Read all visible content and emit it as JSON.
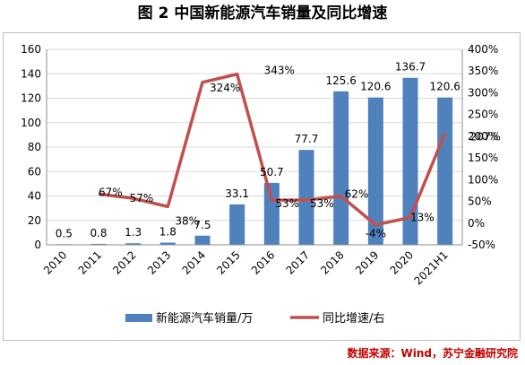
{
  "title": "图 2  中国新能源汽车销量及同比增速",
  "source": "数据来源：Wind，苏宁金融研究院",
  "chart_data": {
    "type": "bar+line",
    "categories": [
      "2010",
      "2011",
      "2012",
      "2013",
      "2014",
      "2015",
      "2016",
      "2017",
      "2018",
      "2019",
      "2020",
      "2021H1"
    ],
    "series": [
      {
        "name": "新能源汽车销量/万",
        "type": "bar",
        "axis": "left",
        "color": "#4f81bd",
        "values": [
          0.5,
          0.8,
          1.3,
          1.8,
          7.5,
          33.1,
          50.7,
          77.7,
          125.6,
          120.6,
          136.7,
          120.6
        ],
        "labels": [
          "0.5",
          "0.8",
          "1.3",
          "1.8",
          "7.5",
          "33.1",
          "50.7",
          "77.7",
          "125.6",
          "120.6",
          "136.7",
          "120.6"
        ]
      },
      {
        "name": "同比增速/右",
        "type": "line",
        "axis": "right",
        "color": "#c0504d",
        "values": [
          null,
          67,
          57,
          38,
          324,
          343,
          53,
          53,
          62,
          -4,
          13,
          207
        ],
        "labels": [
          "",
          "67%",
          "57%",
          "38%",
          "324%",
          "343%",
          "53%",
          "53%",
          "62%",
          "-4%",
          "13%",
          "207%"
        ]
      }
    ],
    "left_axis": {
      "min": 0,
      "max": 160,
      "ticks": [
        "0",
        "20",
        "40",
        "60",
        "80",
        "100",
        "120",
        "140",
        "160"
      ]
    },
    "right_axis": {
      "min": -50,
      "max": 400,
      "ticks": [
        "-50%",
        "0%",
        "50%",
        "100%",
        "150%",
        "200%",
        "250%",
        "300%",
        "350%",
        "400%"
      ]
    },
    "grid": true,
    "legend_position": "bottom"
  }
}
